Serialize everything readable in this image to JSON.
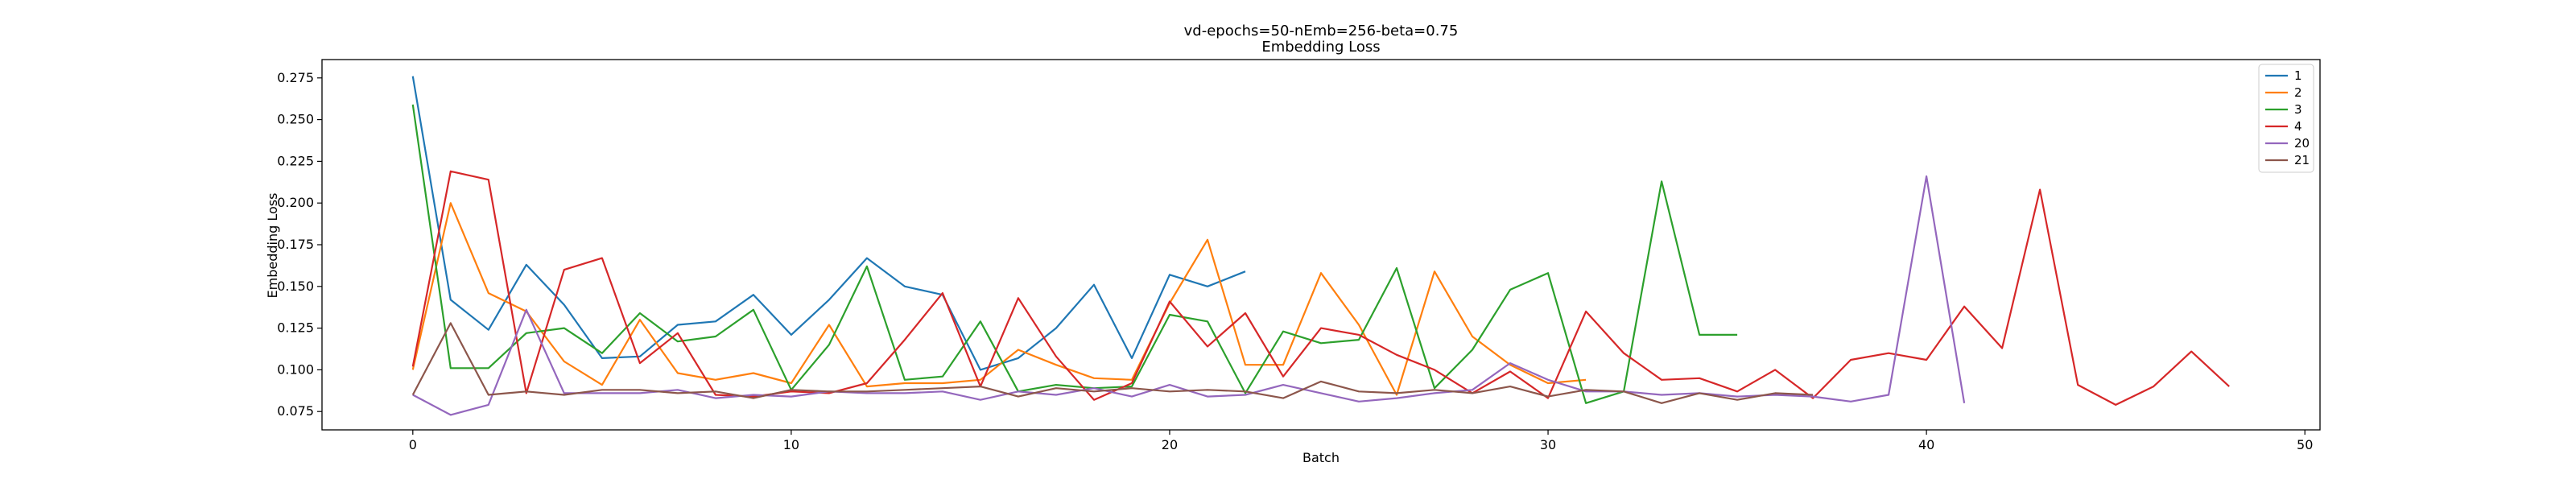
{
  "chart_data": {
    "type": "line",
    "title": "vd-epochs=50-nEmb=256-beta=0.75",
    "subtitle": "Embedding Loss",
    "xlabel": "Batch",
    "ylabel": "Embedding Loss",
    "xlim": [
      -2.4,
      50.4
    ],
    "ylim": [
      0.064,
      0.286
    ],
    "xticks": [
      0,
      10,
      20,
      30,
      40,
      50
    ],
    "yticks": [
      0.075,
      0.1,
      0.125,
      0.15,
      0.175,
      0.2,
      0.225,
      0.25,
      0.275
    ],
    "grid": false,
    "legend_position": "top-right",
    "series": [
      {
        "name": "1",
        "color": "#1f77b4",
        "x": [
          0,
          1,
          2,
          3,
          4,
          5,
          6,
          7,
          8,
          9,
          10,
          11,
          12,
          13,
          14,
          15,
          16,
          17,
          18,
          19,
          20,
          21,
          22
        ],
        "values": [
          0.276,
          0.142,
          0.124,
          0.163,
          0.139,
          0.107,
          0.108,
          0.127,
          0.129,
          0.145,
          0.121,
          0.142,
          0.167,
          0.15,
          0.145,
          0.1,
          0.107,
          0.125,
          0.151,
          0.107,
          0.157,
          0.15,
          0.159
        ]
      },
      {
        "name": "2",
        "color": "#ff7f0e",
        "x": [
          0,
          1,
          2,
          3,
          4,
          5,
          6,
          7,
          8,
          9,
          10,
          11,
          12,
          13,
          14,
          15,
          16,
          17,
          18,
          19,
          20,
          21,
          22,
          23,
          24,
          25,
          26,
          27,
          28,
          29,
          30,
          31
        ],
        "values": [
          0.1,
          0.2,
          0.146,
          0.135,
          0.105,
          0.091,
          0.13,
          0.098,
          0.094,
          0.098,
          0.092,
          0.127,
          0.09,
          0.092,
          0.092,
          0.094,
          0.112,
          0.103,
          0.095,
          0.094,
          0.14,
          0.178,
          0.103,
          0.103,
          0.158,
          0.127,
          0.085,
          0.159,
          0.12,
          0.103,
          0.092,
          0.094
        ]
      },
      {
        "name": "3",
        "color": "#2ca02c",
        "x": [
          0,
          1,
          2,
          3,
          4,
          5,
          6,
          7,
          8,
          9,
          10,
          11,
          12,
          13,
          14,
          15,
          16,
          17,
          18,
          19,
          20,
          21,
          22,
          23,
          24,
          25,
          26,
          27,
          28,
          29,
          30,
          31,
          32,
          33,
          34,
          35
        ],
        "values": [
          0.259,
          0.101,
          0.101,
          0.122,
          0.125,
          0.11,
          0.134,
          0.117,
          0.12,
          0.136,
          0.088,
          0.115,
          0.162,
          0.094,
          0.096,
          0.129,
          0.087,
          0.091,
          0.089,
          0.09,
          0.133,
          0.129,
          0.086,
          0.123,
          0.116,
          0.118,
          0.161,
          0.089,
          0.112,
          0.148,
          0.158,
          0.08,
          0.087,
          0.213,
          0.121,
          0.121
        ]
      },
      {
        "name": "4",
        "color": "#d62728",
        "x": [
          0,
          1,
          2,
          3,
          4,
          5,
          6,
          7,
          8,
          9,
          10,
          11,
          12,
          13,
          14,
          15,
          16,
          17,
          18,
          19,
          20,
          21,
          22,
          23,
          24,
          25,
          26,
          27,
          28,
          29,
          30,
          31,
          32,
          33,
          34,
          35,
          36,
          37,
          38,
          39,
          40,
          41,
          42,
          43,
          44,
          45,
          46,
          47,
          48
        ],
        "values": [
          0.102,
          0.219,
          0.214,
          0.086,
          0.16,
          0.167,
          0.104,
          0.122,
          0.085,
          0.084,
          0.087,
          0.086,
          0.092,
          0.118,
          0.146,
          0.09,
          0.143,
          0.108,
          0.082,
          0.092,
          0.141,
          0.114,
          0.134,
          0.096,
          0.125,
          0.121,
          0.109,
          0.1,
          0.086,
          0.099,
          0.083,
          0.135,
          0.11,
          0.094,
          0.095,
          0.087,
          0.1,
          0.083,
          0.106,
          0.11,
          0.106,
          0.138,
          0.113,
          0.208,
          0.091,
          0.079,
          0.09,
          0.111,
          0.09
        ]
      },
      {
        "name": "20",
        "color": "#9467bd",
        "x": [
          0,
          1,
          2,
          3,
          4,
          5,
          6,
          7,
          8,
          9,
          10,
          11,
          12,
          13,
          14,
          15,
          16,
          17,
          18,
          19,
          20,
          21,
          22,
          23,
          24,
          25,
          26,
          27,
          28,
          29,
          30,
          31,
          32,
          33,
          34,
          35,
          36,
          37,
          38,
          39,
          40,
          41
        ],
        "values": [
          0.085,
          0.073,
          0.079,
          0.136,
          0.086,
          0.086,
          0.086,
          0.088,
          0.083,
          0.085,
          0.084,
          0.087,
          0.086,
          0.086,
          0.087,
          0.082,
          0.087,
          0.085,
          0.089,
          0.084,
          0.091,
          0.084,
          0.085,
          0.091,
          0.086,
          0.081,
          0.083,
          0.086,
          0.088,
          0.104,
          0.094,
          0.087,
          0.087,
          0.085,
          0.086,
          0.084,
          0.085,
          0.084,
          0.081,
          0.085,
          0.216,
          0.08
        ]
      },
      {
        "name": "21",
        "color": "#8c564b",
        "x": [
          0,
          1,
          2,
          3,
          4,
          5,
          6,
          7,
          8,
          9,
          10,
          11,
          12,
          13,
          14,
          15,
          16,
          17,
          18,
          19,
          20,
          21,
          22,
          23,
          24,
          25,
          26,
          27,
          28,
          29,
          30,
          31,
          32,
          33,
          34,
          35,
          36,
          37
        ],
        "values": [
          0.085,
          0.128,
          0.085,
          0.087,
          0.085,
          0.088,
          0.088,
          0.086,
          0.087,
          0.083,
          0.088,
          0.087,
          0.087,
          0.088,
          0.089,
          0.09,
          0.084,
          0.089,
          0.087,
          0.089,
          0.087,
          0.088,
          0.087,
          0.083,
          0.093,
          0.087,
          0.086,
          0.088,
          0.086,
          0.09,
          0.084,
          0.088,
          0.087,
          0.08,
          0.086,
          0.082,
          0.086,
          0.085
        ]
      }
    ]
  }
}
